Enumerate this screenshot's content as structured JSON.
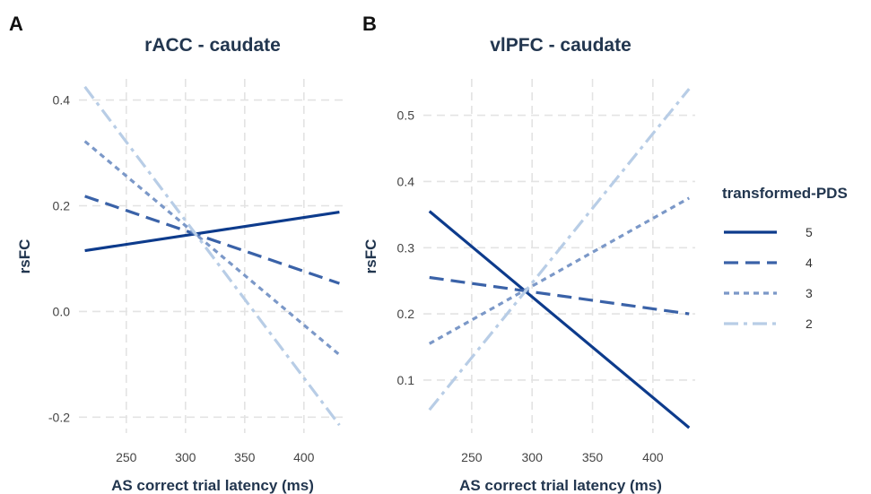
{
  "chart_data": [
    {
      "panel": "A",
      "type": "line",
      "title": "rACC - caudate",
      "xlabel": "AS correct trial latency (ms)",
      "ylabel": "rsFC",
      "xlim": [
        210,
        435
      ],
      "ylim": [
        -0.23,
        0.44
      ],
      "x_ticks": [
        250,
        300,
        350,
        400
      ],
      "y_ticks": [
        -0.2,
        0.0,
        0.2,
        0.4
      ],
      "y_tick_labels": [
        "-0.2",
        "0.0",
        "0.2",
        "0.4"
      ],
      "grid": true,
      "series": [
        {
          "name": "5",
          "x": [
            215,
            430
          ],
          "y": [
            0.115,
            0.188
          ]
        },
        {
          "name": "4",
          "x": [
            215,
            430
          ],
          "y": [
            0.218,
            0.053
          ]
        },
        {
          "name": "3",
          "x": [
            215,
            430
          ],
          "y": [
            0.322,
            -0.082
          ]
        },
        {
          "name": "2",
          "x": [
            215,
            430
          ],
          "y": [
            0.425,
            -0.215
          ]
        }
      ]
    },
    {
      "panel": "B",
      "type": "line",
      "title": "vlPFC - caudate",
      "xlabel": "AS correct trial latency (ms)",
      "ylabel": "rsFC",
      "xlim": [
        210,
        435
      ],
      "ylim": [
        0.02,
        0.555
      ],
      "x_ticks": [
        250,
        300,
        350,
        400
      ],
      "y_ticks": [
        0.1,
        0.2,
        0.3,
        0.4,
        0.5
      ],
      "y_tick_labels": [
        "0.1",
        "0.2",
        "0.3",
        "0.4",
        "0.5"
      ],
      "grid": true,
      "series": [
        {
          "name": "5",
          "x": [
            215,
            430
          ],
          "y": [
            0.355,
            0.028
          ]
        },
        {
          "name": "4",
          "x": [
            215,
            430
          ],
          "y": [
            0.255,
            0.2
          ]
        },
        {
          "name": "3",
          "x": [
            215,
            430
          ],
          "y": [
            0.155,
            0.375
          ]
        },
        {
          "name": "2",
          "x": [
            215,
            430
          ],
          "y": [
            0.055,
            0.54
          ]
        }
      ]
    }
  ],
  "legend": {
    "title": "transformed-PDS",
    "placement": "right",
    "items": [
      {
        "label": "5",
        "color": "#0d3b8c",
        "style": "solid"
      },
      {
        "label": "4",
        "color": "#3a62a8",
        "style": "dashed"
      },
      {
        "label": "3",
        "color": "#7b98c8",
        "style": "dotted"
      },
      {
        "label": "2",
        "color": "#b8cde6",
        "style": "dotdash"
      }
    ]
  }
}
